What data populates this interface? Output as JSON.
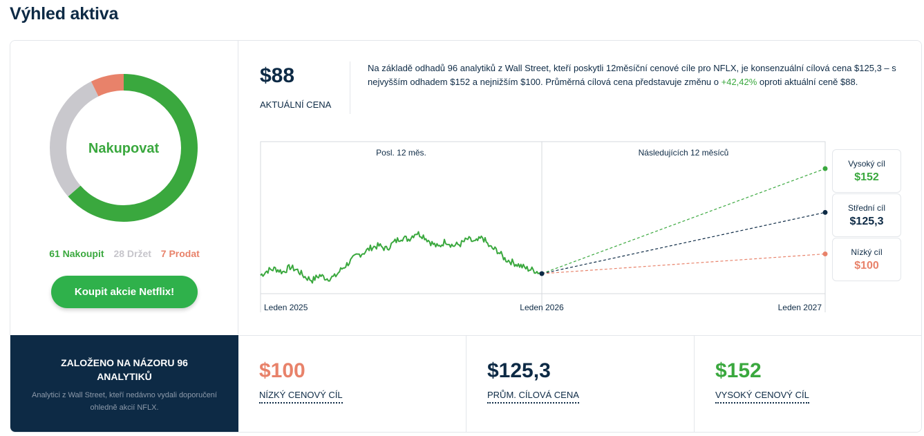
{
  "page": {
    "title": "Výhled aktiva"
  },
  "rating": {
    "label": "Nakupovat",
    "buy_count_label": "61 Nakoupit",
    "hold_count_label": "28 Držet",
    "sell_count_label": "7 Prodat",
    "buy": 61,
    "hold": 28,
    "sell": 7,
    "colors": {
      "buy": "#3aa83e",
      "hold": "#c9c8cd",
      "sell": "#e8826a"
    },
    "cta_label": "Koupit akcie Netflix!"
  },
  "current": {
    "price": "$88",
    "label": "AKTUÁLNÍ CENA"
  },
  "summary": {
    "text_before": "Na základě odhadů 96 analytiků z Wall Street, kteří poskytli 12měsíční cenové cíle pro NFLX, je konsenzuální cílová cena $125,3 – s nejvyšším odhadem $152 a nejnižším $100. Průměrná cílová cena představuje změnu o ",
    "change": "+42,42%",
    "text_after": " oproti aktuální ceně $88."
  },
  "chart_data": {
    "type": "line",
    "sections": [
      "Posl. 12 měs.",
      "Následujících 12 měsíců"
    ],
    "x_labels": [
      "Leden 2025",
      "Leden 2026",
      "Leden 2027"
    ],
    "history": [
      87,
      90,
      91,
      89,
      92,
      90,
      86,
      84,
      87,
      85,
      86,
      91,
      95,
      99,
      101,
      104,
      105,
      103,
      107,
      110,
      109,
      113,
      111,
      107,
      104,
      108,
      105,
      106,
      109,
      107,
      110,
      104,
      102,
      97,
      95,
      93,
      91,
      90,
      88
    ],
    "targets": [
      {
        "label": "Vysoký cíl",
        "value": "$152",
        "v": 152,
        "color": "#3aa83e"
      },
      {
        "label": "Střední cíl",
        "value": "$125,3",
        "v": 125.3,
        "color": "#0d2a45"
      },
      {
        "label": "Nízký cíl",
        "value": "$100",
        "v": 100,
        "color": "#e8826a"
      }
    ],
    "line_color": "#3aa83e"
  },
  "bottom": {
    "title": "ZALOŽENO NA NÁZORU 96 ANALYTIKŮ",
    "subtitle": "Analytici z Wall Street, kteří nedávno vydali doporučení ohledně akcií NFLX.",
    "stats": [
      {
        "value": "$100",
        "label": "NÍZKÝ CENOVÝ CÍL",
        "color": "#e8826a"
      },
      {
        "value": "$125,3",
        "label": "PRŮM. CÍLOVÁ CENA",
        "color": "#0d2a45"
      },
      {
        "value": "$152",
        "label": "VYSOKÝ CENOVÝ CÍL",
        "color": "#3aa83e"
      }
    ]
  }
}
